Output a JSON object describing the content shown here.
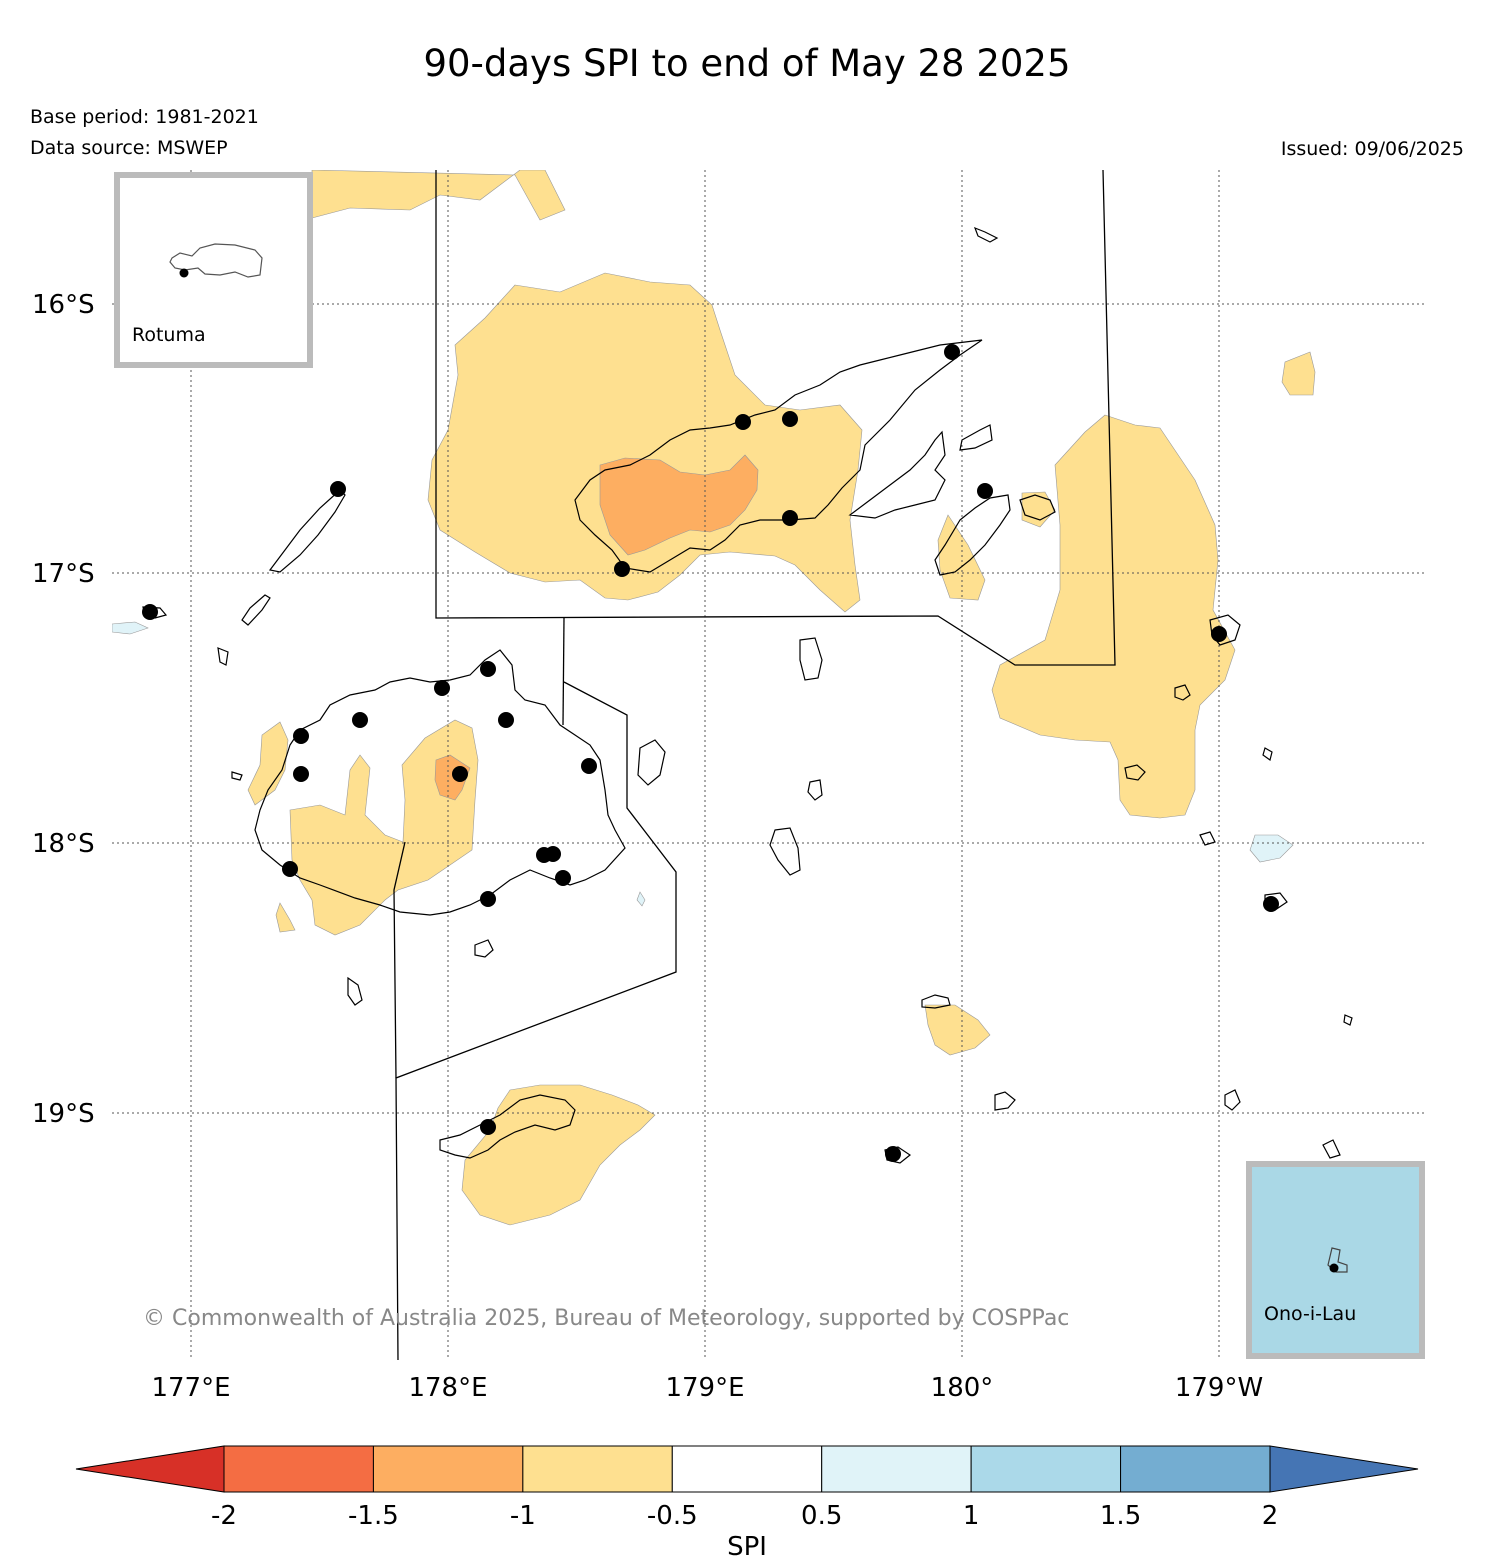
{
  "title": "90-days SPI to end of May 28 2025",
  "base_period": "Base period: 1981-2021",
  "data_source": "Data source: MSWEP",
  "issued": "Issued: 09/06/2025",
  "copyright": "© Commonwealth of Australia 2025, Bureau of Meteorology, supported by COSPPac",
  "insets": [
    {
      "name": "Rotuma",
      "fill": "#ffffff"
    },
    {
      "name": "Ono-i-Lau",
      "fill": "#aad8e6"
    }
  ],
  "lat_labels": [
    "16°S",
    "17°S",
    "18°S",
    "19°S"
  ],
  "lon_labels": [
    "177°E",
    "178°E",
    "179°E",
    "180°",
    "179°W"
  ],
  "colorbar": {
    "label": "SPI",
    "ticks": [
      "-2",
      "-1.5",
      "-1",
      "-0.5",
      "0.5",
      "1",
      "1.5",
      "2"
    ],
    "colors": [
      "#d73027",
      "#f46d43",
      "#fdae61",
      "#fee090",
      "#ffffff",
      "#e0f3f8",
      "#abd9e9",
      "#74add1",
      "#4575b4"
    ]
  },
  "spi_colors": {
    "dry_mild": "#fee090",
    "dry_moderate": "#fdae61",
    "wet_mild": "#e0f3f8"
  }
}
